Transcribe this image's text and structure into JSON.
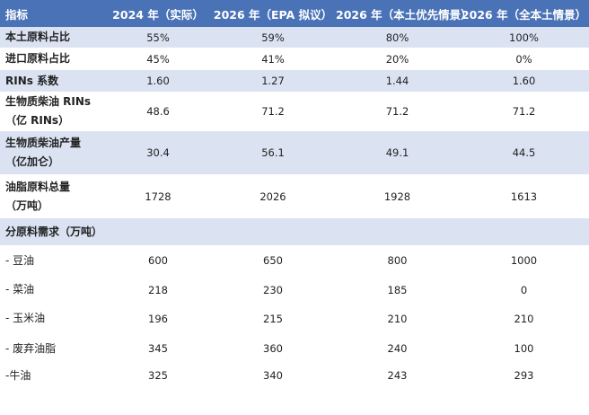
{
  "header": [
    "指标",
    "2024 年（实际）",
    "2026 年（EPA 拟议）",
    "2026 年（本土优先情景）",
    "2026 年（全本土情景）"
  ],
  "rows": [
    {
      "label": [
        "本土原料占比"
      ],
      "values": [
        "55%",
        "59%",
        "80%",
        "100%"
      ],
      "sub": false
    },
    {
      "label": [
        "进口原料占比"
      ],
      "values": [
        "45%",
        "41%",
        "20%",
        "0%"
      ],
      "sub": false
    },
    {
      "label": [
        "RINs 系数"
      ],
      "values": [
        "1.60",
        "1.27",
        "1.44",
        "1.60"
      ],
      "sub": false
    },
    {
      "label": [
        "生物质柴油 RINs",
        "（亿 RINs）"
      ],
      "values": [
        "48.6",
        "71.2",
        "71.2",
        "71.2"
      ],
      "sub": false
    },
    {
      "label": [
        "生物质柴油产量",
        "（亿加仑）"
      ],
      "values": [
        "30.4",
        "56.1",
        "49.1",
        "44.5"
      ],
      "sub": false
    },
    {
      "label": [
        "油脂原料总量",
        "（万吨）"
      ],
      "values": [
        "1728",
        "2026",
        "1928",
        "1613"
      ],
      "sub": false
    },
    {
      "label": [
        "分原料需求（万吨）"
      ],
      "values": [
        "",
        "",
        "",
        ""
      ],
      "sub": false
    },
    {
      "label": [
        "- 豆油"
      ],
      "values": [
        "600",
        "650",
        "800",
        "1000"
      ],
      "sub": true
    },
    {
      "label": [
        "- 菜油"
      ],
      "values": [
        "218",
        "230",
        "185",
        "0"
      ],
      "sub": true
    },
    {
      "label": [
        "- 玉米油"
      ],
      "values": [
        "196",
        "215",
        "210",
        "210"
      ],
      "sub": true
    },
    {
      "label": [
        "- 废弃油脂"
      ],
      "values": [
        "345",
        "360",
        "240",
        "100"
      ],
      "sub": true
    },
    {
      "label": [
        "-牛油"
      ],
      "values": [
        "325",
        "340",
        "243",
        "293"
      ],
      "sub": true
    }
  ]
}
